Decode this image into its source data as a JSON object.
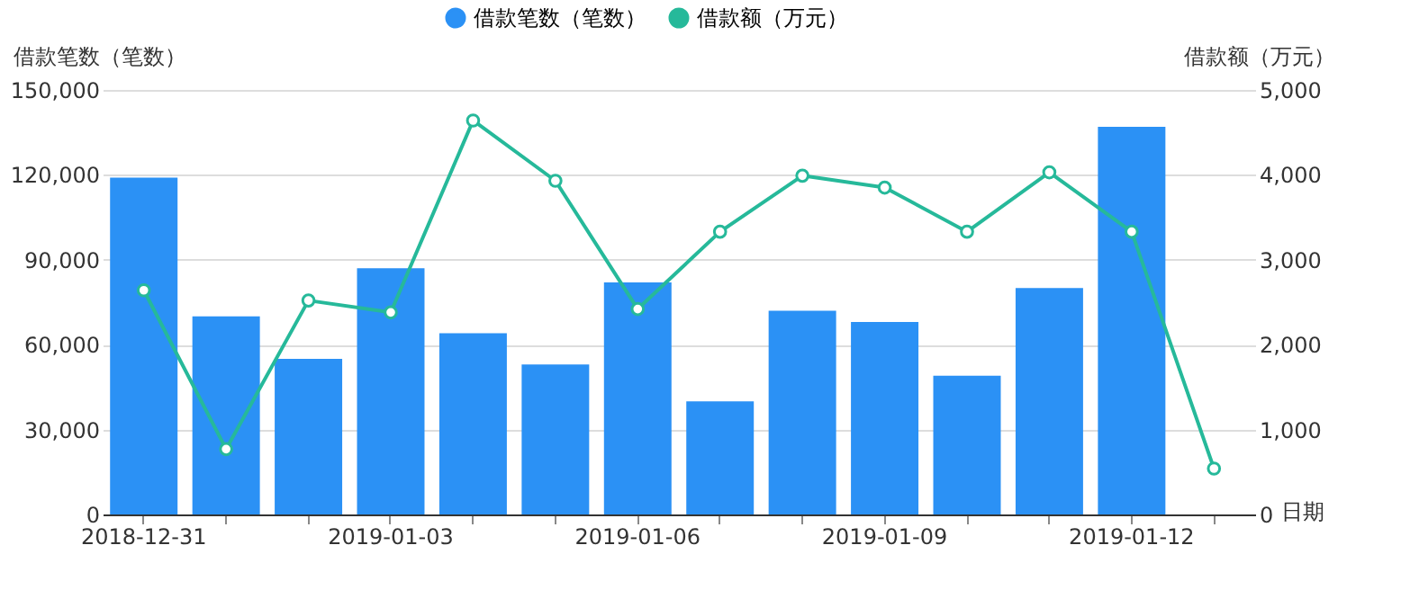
{
  "chart_data": {
    "type": "bar",
    "categories": [
      "2018-12-31",
      null,
      null,
      "2019-01-03",
      null,
      null,
      "2019-01-06",
      null,
      null,
      "2019-01-09",
      null,
      null,
      "2019-01-12",
      null
    ],
    "xlabel": "日期",
    "ylabel": "借款笔数（笔数）",
    "y2label": "借款额（万元）",
    "series": [
      {
        "name": "借款笔数（笔数）",
        "color": "#2b91f5",
        "values": [
          119000,
          70000,
          55000,
          87000,
          64000,
          53000,
          82000,
          40000,
          72000,
          68000,
          49000,
          80000,
          137000,
          null
        ]
      },
      {
        "name": "借款额（万元）",
        "type": "line",
        "axis": "y2",
        "color": "#26b99a",
        "marker": "circle",
        "values": [
          2640,
          770,
          2520,
          2380,
          4640,
          3930,
          2420,
          3330,
          3990,
          3850,
          3330,
          4030,
          3330,
          540
        ]
      }
    ],
    "ylim": [
      0,
      150000
    ],
    "yticks": [
      0,
      {
        "value": 30000,
        "label": "30,000"
      },
      {
        "value": 60000,
        "label": "60,000"
      },
      {
        "value": 90000,
        "label": "90,000"
      },
      {
        "value": 120000,
        "label": "120,000"
      },
      {
        "value": 150000,
        "label": "150,000"
      }
    ],
    "y2lim": [
      0,
      5000
    ],
    "y2ticks": [
      0,
      {
        "value": 1000,
        "label": "1,000"
      },
      {
        "value": 2000,
        "label": "2,000"
      },
      {
        "value": 3000,
        "label": "3,000"
      },
      {
        "value": 4000,
        "label": "4,000"
      },
      {
        "value": 5000,
        "label": "5,000"
      }
    ],
    "grid": "y",
    "legend": "top"
  }
}
